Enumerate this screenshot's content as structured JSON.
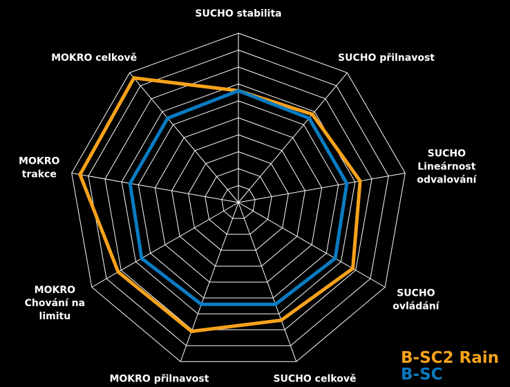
{
  "chart_data": {
    "type": "radar",
    "categories": [
      "SUCHO stabilita",
      "SUCHO přilnavost",
      "SUCHO\nLineárnost\nodvalování",
      "SUCHO\novládání",
      "SUCHO celkově",
      "MOKRO přilnavost",
      "MOKRO\nChování na\nlimitu",
      "MOKRO\ntrakce",
      "MOKRO celkově"
    ],
    "series": [
      {
        "name": "B-SC2 Rain",
        "color": "#f7a21b",
        "values": [
          6.6,
          6.8,
          7.3,
          7.8,
          7.4,
          8.1,
          8.2,
          9.5,
          9.6
        ]
      },
      {
        "name": "B-SC",
        "color": "#0a7bc1",
        "values": [
          6.6,
          6.5,
          6.5,
          6.6,
          6.4,
          6.4,
          6.6,
          6.5,
          6.5
        ]
      }
    ],
    "rlim": [
      0,
      10
    ],
    "rticks": [
      1,
      2,
      3,
      4,
      5,
      6,
      7,
      8,
      9,
      10
    ],
    "grid": true
  }
}
